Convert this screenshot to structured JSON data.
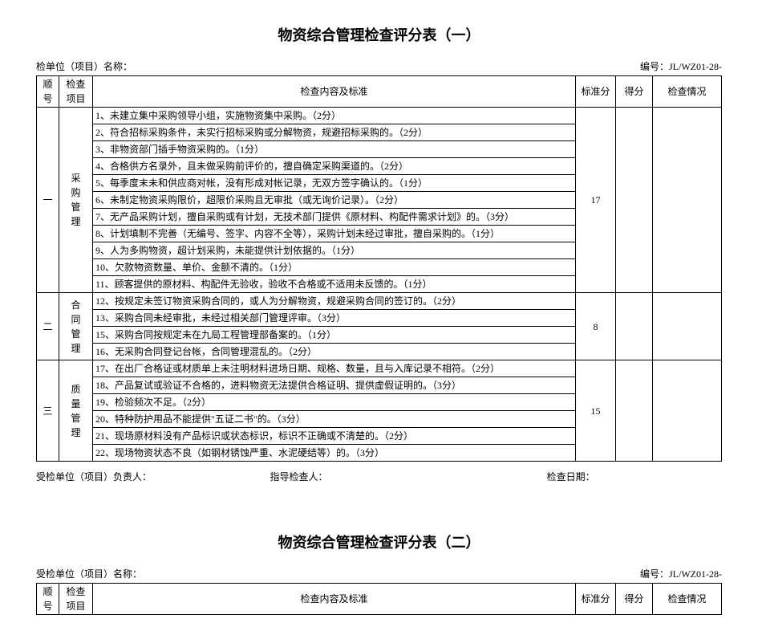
{
  "title1": "物资综合管理检查评分表（一）",
  "title2": "物资综合管理检查评分表（二）",
  "unit_label": "检单位（项目）名称：",
  "unit_label2": "受检单位（项目）名称：",
  "code_label": "编号：JL/WZ01-28-",
  "headers": {
    "seq": "顺号",
    "proj": "检查项目",
    "content": "检查内容及标准",
    "std": "标准分",
    "score": "得分",
    "sit": "检查情况"
  },
  "footer": {
    "resp": "受检单位（项目）负责人：",
    "leader": "指导检查人：",
    "date": "检查日期："
  },
  "groups": [
    {
      "seq": "一",
      "proj": "采购管理",
      "std": "17",
      "items": [
        "1、未建立集中采购领导小组，实施物资集中采购。（2分）",
        "2、符合招标采购条件，未实行招标采购或分解物资，规避招标采购的。（2分）",
        "3、非物资部门插手物资采购的。（1分）",
        "4、合格供方名录外，且未做采购前评价的，擅自确定采购渠道的。（2分）",
        "5、每季度末未和供应商对帐，没有形成对帐记录，无双方签字确认的。（1分）",
        "6、未制定物资采购限价，超限价采购且无审批（或无询价记录）。（2分）",
        "7、无产品采购计划，擅自采购或有计划，无技术部门提供《原材料、构配件需求计划》的。（3分）",
        "8、计划填制不完善（无编号、签字、内容不全等），采购计划未经过审批，擅自采购的。（1分）",
        "9、人为多购物资，超计划采购，未能提供计划依据的。（1分）",
        "10、欠款物资数量、单价、金额不清的。（1分）",
        "11、顾客提供的原材料、构配件无验收，验收不合格或不适用未反馈的。（1分）"
      ]
    },
    {
      "seq": "二",
      "proj": "合同管理",
      "std": "8",
      "items": [
        "12、按规定未签订物资采购合同的，或人为分解物资，规避采购合同的签订的。（2分）",
        "13、采购合同未经审批，未经过相关部门管理评审。（3分）",
        "15、采购合同按规定未在九局工程管理部备案的。（1分）",
        "16、无采购合同登记台帐，合同管理混乱的。（2分）"
      ]
    },
    {
      "seq": "三",
      "proj": "质量管理",
      "std": "15",
      "items": [
        "17、在出厂合格证或材质单上未注明材料进场日期、规格、数量，且与入库记录不相符。（2分）",
        "18、产品复试或验证不合格的，进料物资无法提供合格证明、提供虚假证明的。（3分）",
        "19、检验频次不足。（2分）",
        "20、特种防护用品不能提供\"五证二书\"的。（3分）",
        "21、现场原材料没有产品标识或状态标识，标识不正确或不清楚的。（2分）",
        "22、现场物资状态不良（如钢材锈蚀严重、水泥硬结等）的。（3分）"
      ]
    }
  ]
}
